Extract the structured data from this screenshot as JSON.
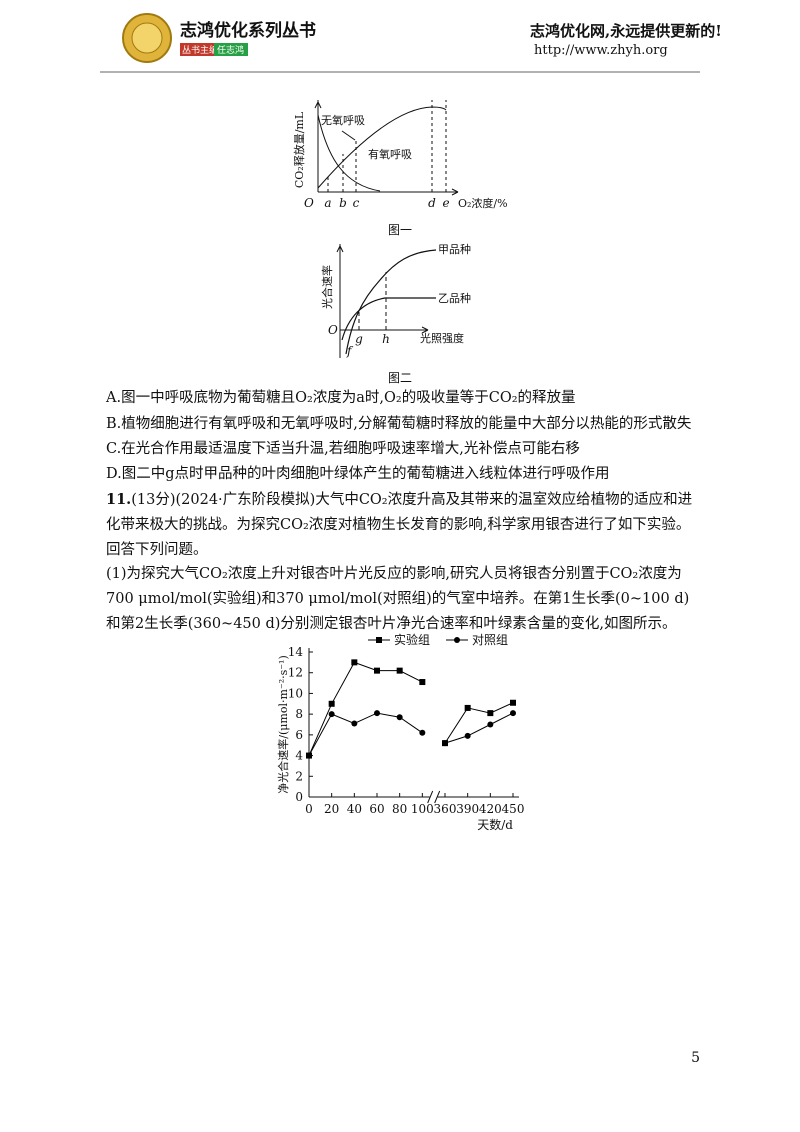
{
  "header": {
    "brand": "志鸿优化系列丛书",
    "editor_label": "丛书主编",
    "editor": "任志鸿",
    "slogan": "志鸿优化网,永远提供更新的!",
    "url": "http://www.zhyh.org"
  },
  "figure1": {
    "y_label": "CO₂释放量/mL",
    "curve_anaerobic": "无氧呼吸",
    "curve_aerobic": "有氧呼吸",
    "origin": "O",
    "x_marks": [
      "a",
      "b",
      "c",
      "d",
      "e"
    ],
    "x_label": "O₂浓度/%",
    "caption": "图一"
  },
  "figure2": {
    "y_label": "光合速率",
    "curve_a": "甲品种",
    "curve_b": "乙品种",
    "origin": "O",
    "x_marks": [
      "g",
      "h"
    ],
    "y_mark": "f",
    "x_label": "光照强度",
    "caption": "图二"
  },
  "options": [
    "A.图一中呼吸底物为葡萄糖且O₂浓度为a时,O₂的吸收量等于CO₂的释放量",
    "B.植物细胞进行有氧呼吸和无氧呼吸时,分解葡萄糖时释放的能量中大部分以热能的形式散失",
    "C.在光合作用最适温度下适当升温,若细胞呼吸速率增大,光补偿点可能右移",
    "D.图二中g点时甲品种的叶肉细胞叶绿体产生的葡萄糖进入线粒体进行呼吸作用"
  ],
  "question": {
    "number": "11.",
    "stem": "(13分)(2024·广东阶段模拟)大气中CO₂浓度升高及其带来的温室效应给植物的适应和进化带来极大的挑战。为探究CO₂浓度对植物生长发育的影响,科学家用银杏进行了如下实验。回答下列问题。",
    "part1": "(1)为探究大气CO₂浓度上升对银杏叶片光反应的影响,研究人员将银杏分别置于CO₂浓度为700 μmol/mol(实验组)和370 μmol/mol(对照组)的气室中培养。在第1生长季(0~100 d)和第2生长季(360~450 d)分别测定银杏叶片净光合速率和叶绿素含量的变化,如图所示。"
  },
  "chart_data": {
    "type": "line",
    "x": [
      0,
      20,
      40,
      60,
      80,
      100,
      360,
      390,
      420,
      450
    ],
    "series": [
      {
        "name": "实验组",
        "color": "#000000",
        "marker": "square",
        "values": [
          4,
          9,
          13,
          12.2,
          12.2,
          11.1,
          5.2,
          8.6,
          8.1,
          9.1
        ]
      },
      {
        "name": "对照组",
        "color": "#000000",
        "marker": "circle",
        "values": [
          4,
          8,
          7.1,
          8.1,
          7.7,
          6.2,
          5.2,
          5.9,
          7,
          8.1
        ]
      }
    ],
    "x_label": "天数/d",
    "y_label": "净光合速率/(μmol·m⁻²·s⁻¹)",
    "xlim": [
      0,
      450
    ],
    "xticks": [
      0,
      20,
      40,
      60,
      80,
      100,
      360,
      390,
      420,
      450
    ],
    "ylim": [
      0,
      14
    ],
    "yticks": [
      0,
      2,
      4,
      6,
      8,
      10,
      12,
      14
    ],
    "axis_break": true,
    "legend": "top"
  },
  "page_number": "5"
}
